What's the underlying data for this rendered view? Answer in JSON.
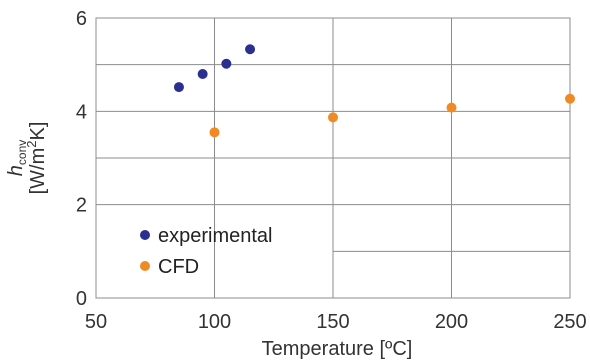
{
  "chart_data": {
    "type": "scatter",
    "title": "",
    "xlabel": "Temperature [ºC]",
    "ylabel": {
      "symbol": "h",
      "subscript": "conv",
      "unit_prefix": "[W/m",
      "unit_exp": "2",
      "unit_suffix": "K]"
    },
    "xlim": [
      50,
      250
    ],
    "ylim": [
      0,
      6
    ],
    "xticks": [
      "50",
      "100",
      "150",
      "200",
      "250"
    ],
    "yticks": [
      "0",
      "2",
      "4",
      "6"
    ],
    "grid": true,
    "legend_position": "lower-left",
    "series": [
      {
        "name": "experimental",
        "color": "#2b2f8f",
        "x": [
          85,
          95,
          105,
          115
        ],
        "y": [
          4.52,
          4.8,
          5.02,
          5.33
        ]
      },
      {
        "name": "CFD",
        "color": "#f08a24",
        "x": [
          100,
          150,
          200,
          250
        ],
        "y": [
          3.55,
          3.87,
          4.08,
          4.27
        ]
      }
    ]
  }
}
